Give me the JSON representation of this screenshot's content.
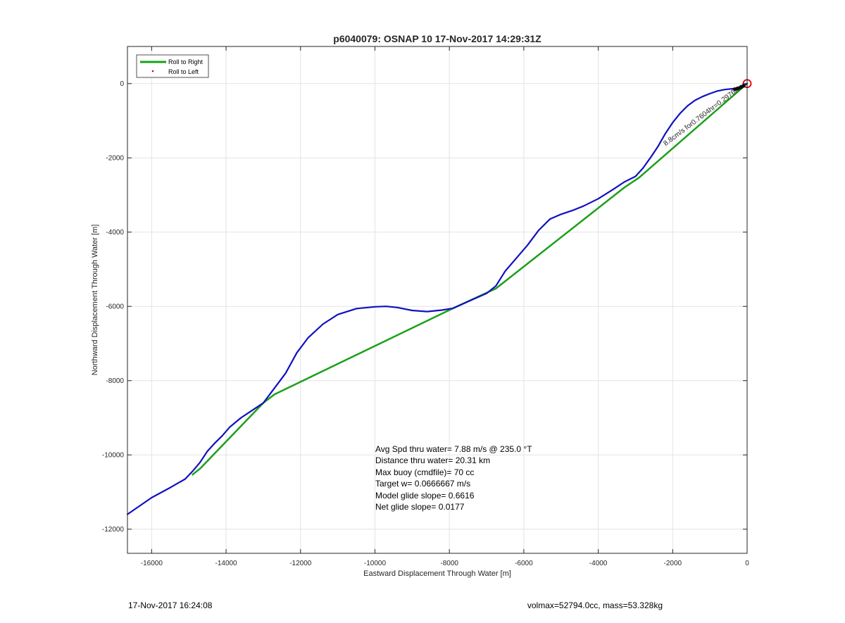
{
  "chart_data": {
    "type": "line",
    "title": "p6040079: OSNAP 10 17-Nov-2017 14:29:31Z",
    "xlabel": "Eastward Displacement Through Water [m]",
    "ylabel": "Northward Displacement Through Water [m]",
    "xlim": [
      -16650,
      0
    ],
    "ylim": [
      -12650,
      1000
    ],
    "xticks": [
      -16000,
      -14000,
      -12000,
      -10000,
      -8000,
      -6000,
      -4000,
      -2000,
      0
    ],
    "yticks": [
      0,
      -2000,
      -4000,
      -6000,
      -8000,
      -10000,
      -12000
    ],
    "grid": true,
    "legend_position": "top-left",
    "legend": [
      {
        "label": "Roll to Right",
        "color": "#1aa01a",
        "marker": "line"
      },
      {
        "label": "Roll to Left",
        "color": "#e00000",
        "marker": "dot"
      }
    ],
    "series": [
      {
        "name": "Roll to Right",
        "color": "#1aa01a",
        "x": [
          0,
          -2900,
          -3300,
          -6750,
          -7900,
          -12700,
          -13000,
          -14700,
          -14900
        ],
        "y": [
          0,
          -2530,
          -2800,
          -5520,
          -6050,
          -8370,
          -8600,
          -10370,
          -10530
        ]
      },
      {
        "color": "#1010c0",
        "x": [
          -16650,
          -16000,
          -15500,
          -15100,
          -14900,
          -14700,
          -14500,
          -14300,
          -14100,
          -13900,
          -13600,
          -13300,
          -13000,
          -12700,
          -12400,
          -12100,
          -11800,
          -11400,
          -11000,
          -10500,
          -10000,
          -9700,
          -9400,
          -9000,
          -8600,
          -8200,
          -7900,
          -7500,
          -7000,
          -6750,
          -6500,
          -6200,
          -5900,
          -5600,
          -5300,
          -5000,
          -4700,
          -4400,
          -4000,
          -3600,
          -3300,
          -3000,
          -2800,
          -2600,
          -2400,
          -2200,
          -2000,
          -1800,
          -1600,
          -1400,
          -1200,
          -1000,
          -800,
          -600,
          -400,
          -300,
          -200,
          -100,
          0
        ],
        "y": [
          -11600,
          -11150,
          -10880,
          -10650,
          -10440,
          -10200,
          -9900,
          -9680,
          -9480,
          -9250,
          -9000,
          -8800,
          -8600,
          -8200,
          -7800,
          -7250,
          -6850,
          -6480,
          -6220,
          -6060,
          -6010,
          -6000,
          -6030,
          -6110,
          -6140,
          -6100,
          -6050,
          -5870,
          -5650,
          -5450,
          -5050,
          -4700,
          -4350,
          -3950,
          -3650,
          -3520,
          -3420,
          -3300,
          -3100,
          -2850,
          -2650,
          -2500,
          -2280,
          -2000,
          -1700,
          -1350,
          -1050,
          -800,
          -600,
          -450,
          -350,
          -270,
          -200,
          -160,
          -140,
          -130,
          -110,
          -60,
          0
        ]
      }
    ],
    "markers": [
      {
        "x": 0,
        "y": 0,
        "shape": "circle",
        "color": "#e00000"
      },
      {
        "x": -100,
        "y": -60,
        "shape": "dot",
        "color": "#000000"
      },
      {
        "x": -150,
        "y": -90,
        "shape": "dot",
        "color": "#000000"
      },
      {
        "x": -200,
        "y": -110,
        "shape": "dot",
        "color": "#000000"
      },
      {
        "x": -260,
        "y": -130,
        "shape": "dot",
        "color": "#000000"
      },
      {
        "x": -330,
        "y": -150,
        "shape": "dot",
        "color": "#000000"
      }
    ],
    "rotated_annotation": "8.8cm/s for0.7604hr=0.2976km",
    "annotations": [
      "Avg Spd thru water=  7.88 m/s @ 235.0 °T",
      "Distance thru water= 20.31 km",
      "Max buoy (cmdfile)= 70 cc",
      "Target w= 0.0666667 m/s",
      "Model glide slope= 0.6616",
      "Net glide slope= 0.0177"
    ]
  },
  "footer": {
    "left": "17-Nov-2017 16:24:08",
    "right": "volmax=52794.0cc, mass=53.328kg"
  }
}
